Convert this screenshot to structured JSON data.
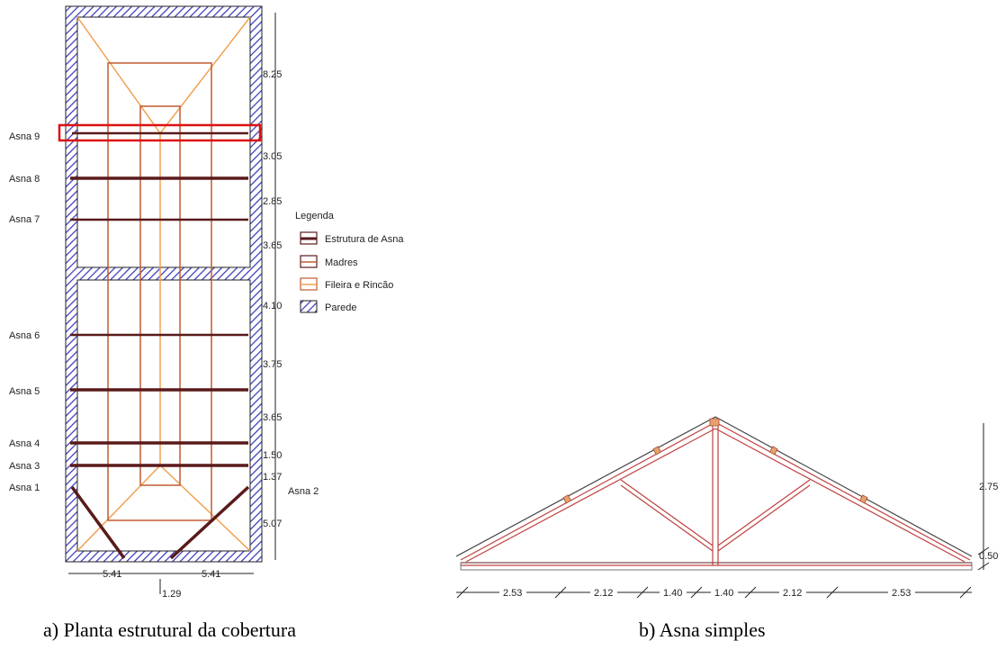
{
  "plan": {
    "truss_labels": [
      "Asna 9",
      "Asna 8",
      "Asna 7",
      "Asna 6",
      "Asna 5",
      "Asna 4",
      "Asna 3",
      "Asna 1",
      "Asna 2"
    ],
    "dims_vertical": [
      "8.25",
      "3.05",
      "2.85",
      "3.65",
      "4.10",
      "3.75",
      "3.65",
      "1.50",
      "1.37",
      "5.07"
    ],
    "dims_bottom": [
      "5.41",
      "5.41",
      "1.29"
    ],
    "caption": "a)  Planta estrutural da cobertura"
  },
  "legend": {
    "title": "Legenda",
    "items": [
      {
        "label": "Estrutura de Asna",
        "color": "#5a1a1a"
      },
      {
        "label": "Madres",
        "color": "#c05a30"
      },
      {
        "label": "Fileira e Rincão",
        "color": "#f0a050"
      },
      {
        "label": "Parede",
        "color": "#3030c0"
      }
    ]
  },
  "truss": {
    "dims_right": [
      "2.75",
      "0.50"
    ],
    "dims_bottom": [
      "2.53",
      "2.12",
      "1.40",
      "1.40",
      "2.12",
      "2.53"
    ],
    "caption": "b)  Asna simples"
  },
  "colors": {
    "wall": "#3333bb",
    "truss_beam": "#5a1a1a",
    "purlin": "#c05a30",
    "ridge": "#f0a050",
    "highlight": "#dd1111"
  }
}
